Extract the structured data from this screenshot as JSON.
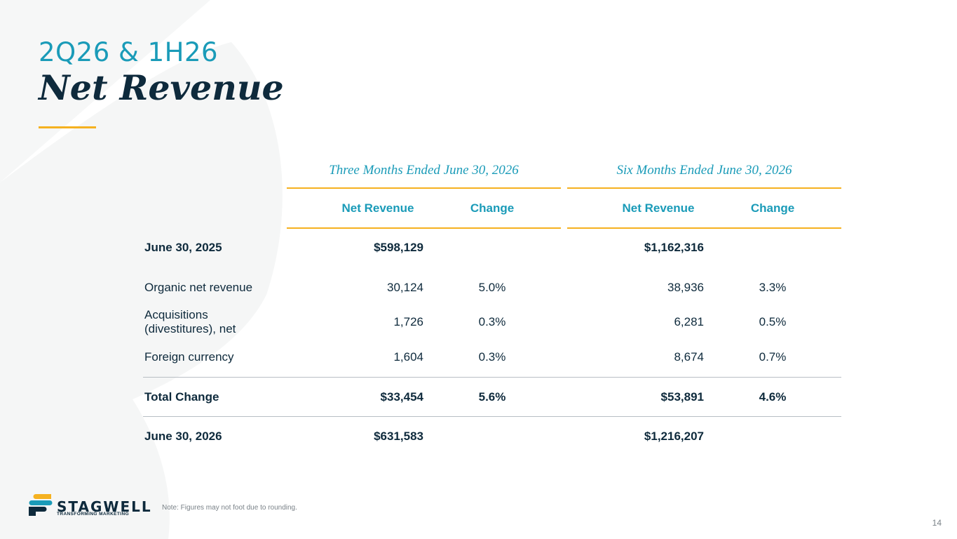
{
  "title": {
    "line1": "2Q26 & 1H26",
    "line2": "Net Revenue"
  },
  "table": {
    "group_headers": [
      "Three Months Ended June 30, 2026",
      "Six Months Ended June 30, 2026"
    ],
    "column_headers": [
      "Net Revenue",
      "Change",
      "Net Revenue",
      "Change"
    ],
    "rows": [
      {
        "label": "June 30, 2025",
        "v1": "$598,129",
        "c1": "",
        "v2": "$1,162,316",
        "c2": ""
      },
      {
        "label": "Organic net revenue",
        "v1": "30,124",
        "c1": "5.0%",
        "v2": "38,936",
        "c2": "3.3%"
      },
      {
        "label": "Acquisitions (divestitures), net",
        "v1": "1,726",
        "c1": "0.3%",
        "v2": "6,281",
        "c2": "0.5%"
      },
      {
        "label": "Foreign currency",
        "v1": "1,604",
        "c1": "0.3%",
        "v2": "8,674",
        "c2": "0.7%"
      },
      {
        "label": "Total Change",
        "v1": "$33,454",
        "c1": "5.6%",
        "v2": "$53,891",
        "c2": "4.6%"
      },
      {
        "label": "June 30, 2026",
        "v1": "$631,583",
        "c1": "",
        "v2": "$1,216,207",
        "c2": ""
      }
    ]
  },
  "footer": {
    "logo_name": "STAGWELL",
    "logo_tagline": "TRANSFORMING MARKETING",
    "note": "Note: Figures may not foot due to rounding.",
    "page_number": "14"
  },
  "colors": {
    "accent_teal": "#1a9bb8",
    "accent_gold": "#f5b120",
    "navy": "#0e2a3c"
  }
}
